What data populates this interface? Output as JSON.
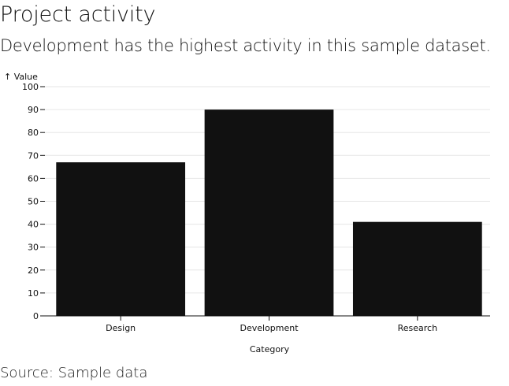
{
  "header": {
    "title": "Project activity",
    "subtitle": "Development has the highest activity in this sample dataset."
  },
  "footer": {
    "caption": "Source: Sample data"
  },
  "colors": {
    "bar": "#111111",
    "grid": "#e6e6e6",
    "axis": "#111111"
  },
  "chart_data": {
    "type": "bar",
    "categories": [
      "Design",
      "Development",
      "Research"
    ],
    "values": [
      67,
      90,
      41
    ],
    "title": "Project activity",
    "subtitle": "Development has the highest activity in this sample dataset.",
    "xlabel": "Category",
    "ylabel": "↑ Value",
    "ylim": [
      0,
      100
    ],
    "yticks": [
      0,
      10,
      20,
      30,
      40,
      50,
      60,
      70,
      80,
      90,
      100
    ],
    "grid": true,
    "legend": "none"
  }
}
